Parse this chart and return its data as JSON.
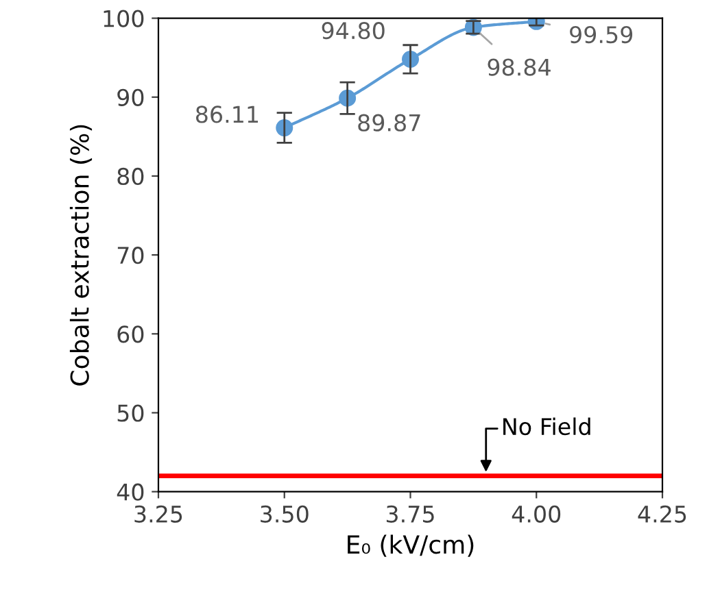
{
  "chart_data": {
    "type": "line",
    "xlabel": "E₀ (kV/cm)",
    "ylabel": "Cobalt extraction (%)",
    "xlim": [
      3.25,
      4.25
    ],
    "xticks": [
      {
        "value": 3.25,
        "label": "3.25"
      },
      {
        "value": 3.5,
        "label": "3.50"
      },
      {
        "value": 3.75,
        "label": "3.75"
      },
      {
        "value": 4.0,
        "label": "4.00"
      },
      {
        "value": 4.25,
        "label": "4.25"
      }
    ],
    "ylim": [
      40,
      100
    ],
    "yticks": [
      40,
      50,
      60,
      70,
      80,
      90,
      100
    ],
    "x": [
      3.5,
      3.625,
      3.75,
      3.875,
      4.0
    ],
    "series": [
      {
        "color": "#5b9bd5",
        "values": [
          86.11,
          89.87,
          94.8,
          98.84,
          99.59
        ],
        "errors": [
          1.9,
          2.0,
          1.8,
          0.8,
          0.5
        ],
        "value_labels": [
          "86.11",
          "89.87",
          "94.80",
          "98.84",
          "99.59"
        ]
      }
    ],
    "marker": "circle",
    "grid": false,
    "ref_lines": [
      {
        "axis": "y",
        "value": 42,
        "label": "No Field",
        "color": "#ff0000"
      }
    ]
  }
}
